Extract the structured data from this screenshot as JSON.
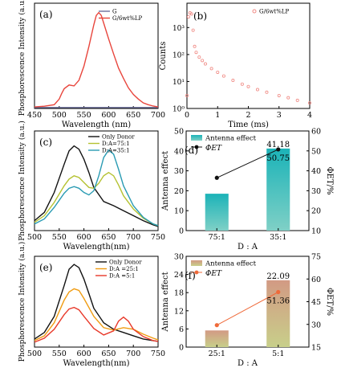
{
  "chart_data": [
    {
      "panel": "(a)",
      "type": "line",
      "xlabel": "Wavelength (nm)",
      "ylabel": "Phosphorescence Intensity (a.u.)",
      "xlim": [
        450,
        700
      ],
      "ylim": [
        0,
        560
      ],
      "xticks": [
        450,
        500,
        550,
        600,
        650,
        700
      ],
      "legend_position": "top-right",
      "series": [
        {
          "name": "G",
          "color": "#6b6f9c",
          "x": [
            450,
            700
          ],
          "y": [
            5,
            5
          ]
        },
        {
          "name": "G/6wt%LP",
          "color": "#e8453c",
          "x": [
            450,
            470,
            490,
            500,
            505,
            510,
            520,
            530,
            540,
            550,
            560,
            570,
            575,
            580,
            585,
            590,
            600,
            610,
            620,
            630,
            640,
            650,
            660,
            670,
            680,
            690,
            700
          ],
          "y": [
            8,
            12,
            20,
            50,
            80,
            105,
            125,
            120,
            150,
            225,
            330,
            445,
            495,
            510,
            495,
            455,
            370,
            290,
            215,
            160,
            110,
            75,
            50,
            30,
            20,
            13,
            8
          ]
        }
      ]
    },
    {
      "panel": "(b)",
      "type": "scatter",
      "xlabel": "Time (ms)",
      "ylabel": "Counts",
      "xlim": [
        0,
        4
      ],
      "ylim": [
        1,
        8000
      ],
      "yscale": "log",
      "xticks": [
        0,
        1,
        2,
        3,
        4
      ],
      "yticks": [
        {
          "value": 1,
          "label": "10⁰"
        },
        {
          "value": 10,
          "label": "10¹"
        },
        {
          "value": 100,
          "label": "10²"
        },
        {
          "value": 1000,
          "label": "10³"
        }
      ],
      "legend_position": "top-right",
      "series": [
        {
          "name": "G/6wt%LP",
          "color": "#f08a84",
          "x": [
            0.0,
            0.05,
            0.1,
            0.15,
            0.2,
            0.25,
            0.3,
            0.4,
            0.5,
            0.6,
            0.8,
            1.0,
            1.2,
            1.5,
            1.8,
            2.0,
            2.3,
            2.6,
            3.0,
            3.3,
            3.6,
            4.0
          ],
          "y": [
            3,
            2500,
            3500,
            3200,
            800,
            200,
            120,
            80,
            60,
            45,
            30,
            22,
            16,
            11,
            8,
            6.5,
            5,
            4,
            3,
            2.5,
            2,
            1.6
          ]
        }
      ]
    },
    {
      "panel": "(c)",
      "type": "line",
      "xlabel": "Wavelength(nm)",
      "ylabel": "Phosphorescence Intensity (a.u.)",
      "xlim": [
        500,
        750
      ],
      "ylim": [
        0,
        600
      ],
      "xticks": [
        500,
        550,
        600,
        650,
        700,
        750
      ],
      "legend_position": "top-right",
      "series": [
        {
          "name": "Only Donor",
          "color": "#111111",
          "x": [
            500,
            520,
            540,
            560,
            570,
            580,
            590,
            600,
            610,
            620,
            640,
            660,
            680,
            700,
            720,
            740,
            750
          ],
          "y": [
            60,
            110,
            230,
            400,
            480,
            510,
            490,
            430,
            350,
            260,
            175,
            150,
            120,
            90,
            60,
            35,
            25
          ]
        },
        {
          "name": "D:A=75:1",
          "color": "#b5c232",
          "x": [
            500,
            520,
            540,
            560,
            570,
            580,
            590,
            600,
            610,
            620,
            630,
            640,
            650,
            660,
            670,
            680,
            700,
            720,
            740,
            750
          ],
          "y": [
            50,
            90,
            170,
            270,
            310,
            330,
            320,
            290,
            260,
            255,
            285,
            330,
            350,
            330,
            275,
            210,
            130,
            75,
            40,
            30
          ]
        },
        {
          "name": "D:A=35:1",
          "color": "#2a9bb3",
          "x": [
            500,
            520,
            540,
            560,
            570,
            580,
            590,
            600,
            610,
            620,
            630,
            640,
            650,
            660,
            670,
            680,
            700,
            720,
            740,
            750
          ],
          "y": [
            40,
            70,
            140,
            225,
            255,
            265,
            255,
            230,
            215,
            240,
            330,
            440,
            485,
            460,
            370,
            270,
            150,
            80,
            40,
            30
          ]
        }
      ]
    },
    {
      "panel": "(d)",
      "type": "bar",
      "xlabel": "D : A",
      "ylabel": "Antenna effect",
      "y2label": "ΦET/%",
      "categories": [
        "75:1",
        "35:1"
      ],
      "ylim": [
        0,
        50
      ],
      "yticks": [
        0,
        10,
        20,
        30,
        40,
        50
      ],
      "y2lim": [
        10,
        60
      ],
      "y2ticks": [
        10,
        20,
        30,
        40,
        50,
        60
      ],
      "series": [
        {
          "name": "Antenna effect",
          "color": "#31b8c0",
          "values": [
            18.5,
            41.18
          ]
        },
        {
          "name": "ΦET",
          "color": "#111111",
          "axis": "right",
          "values": [
            36.5,
            50.75
          ]
        }
      ],
      "data_labels": {
        "bar": [
          null,
          "41.18"
        ],
        "line": [
          null,
          "50.75"
        ]
      }
    },
    {
      "panel": "(e)",
      "type": "line",
      "xlabel": "Wavelength(nm)",
      "ylabel": "Phosphorescence Intensity (a.u.)",
      "xlim": [
        500,
        750
      ],
      "ylim": [
        0,
        560
      ],
      "xticks": [
        500,
        550,
        600,
        650,
        700,
        750
      ],
      "legend_position": "top-right",
      "series": [
        {
          "name": "Only Donor",
          "color": "#111111",
          "x": [
            500,
            520,
            540,
            560,
            570,
            580,
            590,
            600,
            610,
            620,
            640,
            660,
            680,
            700,
            720,
            740,
            750
          ],
          "y": [
            50,
            90,
            190,
            380,
            480,
            510,
            490,
            420,
            330,
            240,
            150,
            110,
            90,
            70,
            50,
            40,
            35
          ]
        },
        {
          "name": "D:A =25:1",
          "color": "#f09c12",
          "x": [
            500,
            520,
            540,
            560,
            570,
            580,
            590,
            600,
            620,
            640,
            660,
            680,
            700,
            720,
            740,
            750
          ],
          "y": [
            40,
            70,
            150,
            290,
            340,
            360,
            350,
            300,
            190,
            120,
            105,
            120,
            110,
            80,
            55,
            45
          ]
        },
        {
          "name": "D:A =5:1",
          "color": "#e8392a",
          "x": [
            500,
            520,
            540,
            560,
            570,
            580,
            590,
            600,
            620,
            640,
            660,
            670,
            680,
            690,
            700,
            720,
            740,
            750
          ],
          "y": [
            30,
            55,
            110,
            200,
            235,
            245,
            230,
            190,
            115,
            75,
            100,
            160,
            185,
            160,
            110,
            65,
            40,
            35
          ]
        }
      ]
    },
    {
      "panel": "(f)",
      "type": "bar",
      "xlabel": "D : A",
      "ylabel": "Antenna effect",
      "y2label": "ΦET/%",
      "categories": [
        "25:1",
        "5:1"
      ],
      "ylim": [
        0,
        30
      ],
      "yticks": [
        0,
        6,
        12,
        18,
        24,
        30
      ],
      "y2lim": [
        15,
        75
      ],
      "y2ticks": [
        15,
        30,
        45,
        60,
        75
      ],
      "series": [
        {
          "name": "Antenna effect",
          "color": "#c2a37e",
          "values": [
            5.5,
            22.09
          ]
        },
        {
          "name": "ΦET",
          "color": "#ef6a3a",
          "axis": "right",
          "values": [
            29.5,
            51.36
          ]
        }
      ],
      "data_labels": {
        "bar": [
          null,
          "22.09"
        ],
        "line": [
          null,
          "51.36"
        ]
      }
    }
  ]
}
